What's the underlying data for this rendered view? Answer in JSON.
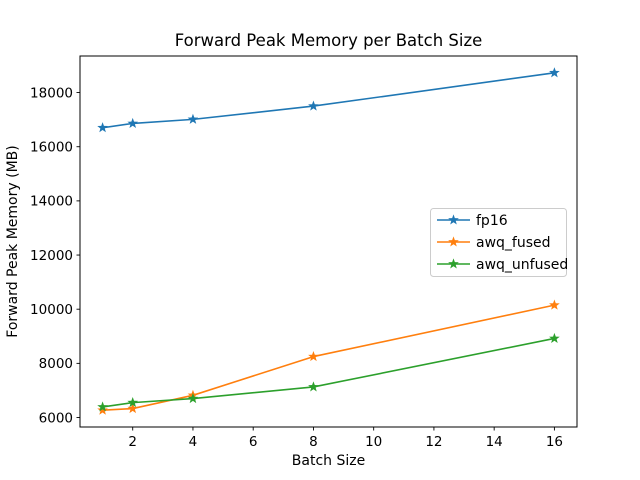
{
  "figure": {
    "background": "#ffffff",
    "text_color": "#000000",
    "spine_color": "#000000",
    "legend_border_color": "#cccccc"
  },
  "chart_data": {
    "type": "line",
    "title": "Forward Peak Memory per Batch Size",
    "xlabel": "Batch Size",
    "ylabel": "Forward Peak Memory (MB)",
    "marker": "star",
    "grid": false,
    "x": [
      1,
      2,
      4,
      8,
      16
    ],
    "series": [
      {
        "name": "fp16",
        "color": "#1f77b4",
        "values": [
          16700,
          16860,
          17010,
          17500,
          18730
        ]
      },
      {
        "name": "awq_fused",
        "color": "#ff7f0e",
        "values": [
          6270,
          6330,
          6820,
          8250,
          10150
        ]
      },
      {
        "name": "awq_unfused",
        "color": "#2ca02c",
        "values": [
          6390,
          6550,
          6700,
          7130,
          8920
        ]
      }
    ],
    "xticks": [
      2,
      4,
      6,
      8,
      10,
      12,
      14,
      16
    ],
    "yticks": [
      6000,
      8000,
      10000,
      12000,
      14000,
      16000,
      18000
    ],
    "xlim": [
      0.25,
      16.75
    ],
    "ylim": [
      5650,
      19350
    ],
    "legend": {
      "position": "center right",
      "entries": [
        "fp16",
        "awq_fused",
        "awq_unfused"
      ]
    }
  }
}
